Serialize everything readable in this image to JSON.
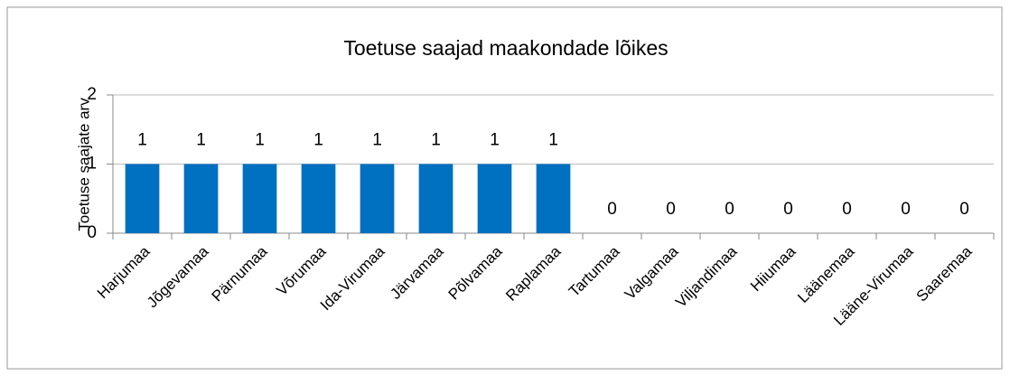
{
  "chart_data": {
    "type": "bar",
    "title": "Toetuse saajad maakondade lõikes",
    "y_label": "Toetuse saajate arv",
    "categories": [
      "Harjumaa",
      "Jõgevamaa",
      "Pärnumaa",
      "Võrumaa",
      "Ida-Virumaa",
      "Järvamaa",
      "Põlvamaa",
      "Raplamaa",
      "Tartumaa",
      "Valgamaa",
      "Viljandimaa",
      "Hiiumaa",
      "Läänemaa",
      "Lääne-Virumaa",
      "Saaremaa"
    ],
    "values": [
      1,
      1,
      1,
      1,
      1,
      1,
      1,
      1,
      0,
      0,
      0,
      0,
      0,
      0,
      0
    ],
    "color": "#0070c0",
    "ylim": [
      0,
      2
    ],
    "yticks": [
      0,
      1,
      2
    ],
    "grid": true
  }
}
